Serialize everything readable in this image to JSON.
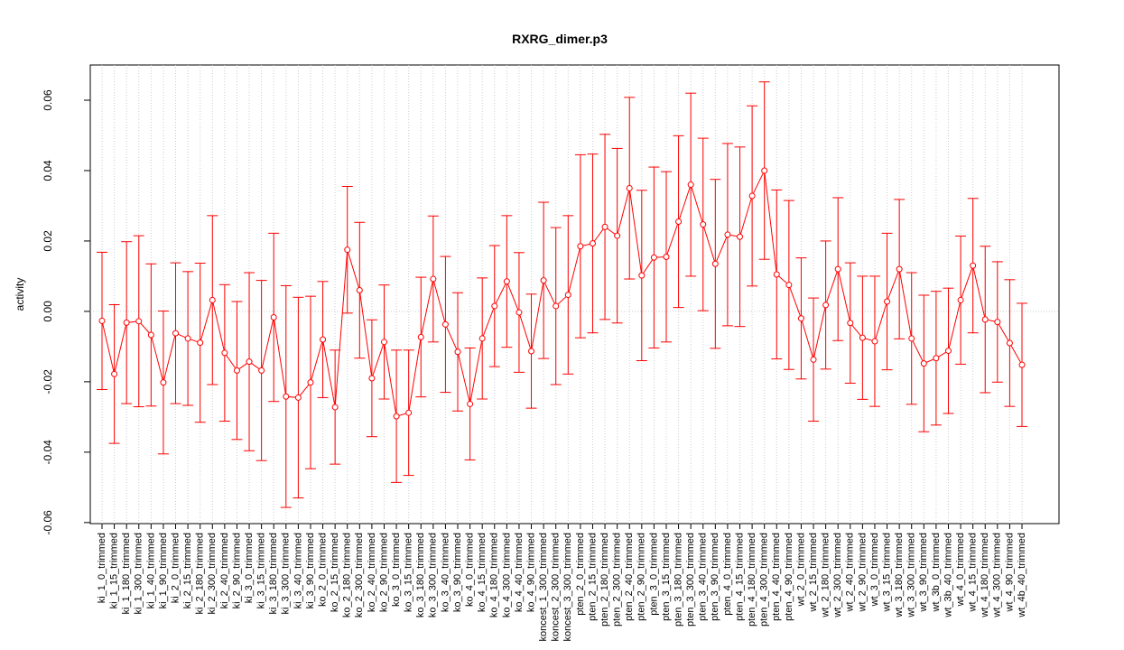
{
  "chart_data": {
    "type": "line",
    "title": "RXRG_dimer.p3",
    "y_label": "activity",
    "color": "#ff0000",
    "grid": true,
    "ylim": [
      -0.0603,
      0.07
    ],
    "yticks": [
      -0.06,
      -0.04,
      -0.02,
      {
        "value": 0,
        "label": "0.00"
      },
      0.02,
      0.04,
      0.06
    ],
    "categories": [
      "ki_1_0_trimmed",
      "ki_1_15_trimmed",
      "ki_1_180_trimmed",
      "ki_1_300_trimmed",
      "ki_1_40_trimmed",
      "ki_1_90_trimmed",
      "ki_2_0_trimmed",
      "ki_2_15_trimmed",
      "ki_2_180_trimmed",
      "ki_2_300_trimmed",
      "ki_2_40_trimmed",
      "ki_2_90_trimmed",
      "ki_3_0_trimmed",
      "ki_3_15_trimmed",
      "ki_3_180_trimmed",
      "ki_3_300_trimmed",
      "ki_3_40_trimmed",
      "ki_3_90_trimmed",
      "ko_2_0_trimmed",
      "ko_2_15_trimmed",
      "ko_2_180_trimmed",
      "ko_2_300_trimmed",
      "ko_2_40_trimmed",
      "ko_2_90_trimmed",
      "ko_3_0_trimmed",
      "ko_3_15_trimmed",
      "ko_3_180_trimmed",
      "ko_3_300_trimmed",
      "ko_3_40_trimmed",
      "ko_3_90_trimmed",
      "ko_4_0_trimmed",
      "ko_4_15_trimmed",
      "ko_4_180_trimmed",
      "ko_4_300_trimmed",
      "ko_4_40_trimmed",
      "ko_4_90_trimmed",
      "koncest_1_300_trimmed",
      "koncest_2_300_trimmed",
      "koncest_3_300_trimmed",
      "pten_2_0_trimmed",
      "pten_2_15_trimmed",
      "pten_2_180_trimmed",
      "pten_2_300_trimmed",
      "pten_2_40_trimmed",
      "pten_2_90_trimmed",
      "pten_3_0_trimmed",
      "pten_3_15_trimmed",
      "pten_3_180_trimmed",
      "pten_3_300_trimmed",
      "pten_3_40_trimmed",
      "pten_3_90_trimmed",
      "pten_4_0_trimmed",
      "pten_4_15_trimmed",
      "pten_4_180_trimmed",
      "pten_4_300_trimmed",
      "pten_4_40_trimmed",
      "pten_4_90_trimmed",
      "wt_2_0_trimmed",
      "wt_2_15_trimmed",
      "wt_2_180_trimmed",
      "wt_2_300_trimmed",
      "wt_2_40_trimmed",
      "wt_2_90_trimmed",
      "wt_3_0_trimmed",
      "wt_3_15_trimmed",
      "wt_3_180_trimmed",
      "wt_3_300_trimmed",
      "wt_3_90_trimmed",
      "wt_3b_0_trimmed",
      "wt_3b_40_trimmed",
      "wt_4_0_trimmed",
      "wt_4_15_trimmed",
      "wt_4_180_trimmed",
      "wt_4_300_trimmed",
      "wt_4_90_trimmed",
      "wt_4b_40_trimmed"
    ],
    "values": [
      -0.0027,
      -0.0178,
      -0.0032,
      -0.0028,
      -0.0067,
      -0.0202,
      -0.0062,
      -0.0077,
      -0.0089,
      0.0032,
      -0.0118,
      -0.0168,
      -0.0143,
      -0.0168,
      -0.0017,
      -0.0242,
      -0.0245,
      -0.0202,
      -0.008,
      -0.0272,
      0.0175,
      0.006,
      -0.019,
      -0.0087,
      -0.0298,
      -0.0288,
      -0.0073,
      0.0092,
      -0.0037,
      -0.0115,
      -0.0263,
      -0.0077,
      0.0015,
      0.0085,
      -0.0003,
      -0.0113,
      0.0088,
      0.0015,
      0.0047,
      0.0185,
      0.0193,
      0.024,
      0.0215,
      0.035,
      0.0102,
      0.0153,
      0.0155,
      0.0255,
      0.036,
      0.0247,
      0.0135,
      0.0218,
      0.0212,
      0.0328,
      0.04,
      0.0105,
      0.0075,
      -0.002,
      -0.0137,
      0.0018,
      0.012,
      -0.0033,
      -0.0075,
      -0.0085,
      0.0028,
      0.012,
      -0.0077,
      -0.0148,
      -0.0133,
      -0.0112,
      0.0032,
      0.013,
      -0.0023,
      -0.003,
      -0.009,
      -0.0152
    ],
    "errors": [
      0.0195,
      0.0197,
      0.023,
      0.0243,
      0.0202,
      0.0203,
      0.02,
      0.019,
      0.0226,
      0.024,
      0.0194,
      0.0196,
      0.0253,
      0.0256,
      0.0239,
      0.0315,
      0.0285,
      0.0245,
      0.0165,
      0.0162,
      0.018,
      0.0193,
      0.0166,
      0.0162,
      0.0188,
      0.0178,
      0.017,
      0.0179,
      0.0193,
      0.0168,
      0.0159,
      0.0172,
      0.0172,
      0.0187,
      0.017,
      0.0162,
      0.0222,
      0.0223,
      0.0225,
      0.026,
      0.0254,
      0.0263,
      0.0248,
      0.0258,
      0.0242,
      0.0257,
      0.0242,
      0.0244,
      0.026,
      0.0245,
      0.024,
      0.0259,
      0.0255,
      0.0256,
      0.0252,
      0.024,
      0.024,
      0.0172,
      0.0175,
      0.0182,
      0.0203,
      0.0171,
      0.0175,
      0.0185,
      0.0194,
      0.0198,
      0.0187,
      0.0194,
      0.019,
      0.0178,
      0.0182,
      0.0191,
      0.0208,
      0.0171,
      0.018,
      0.0175
    ]
  }
}
